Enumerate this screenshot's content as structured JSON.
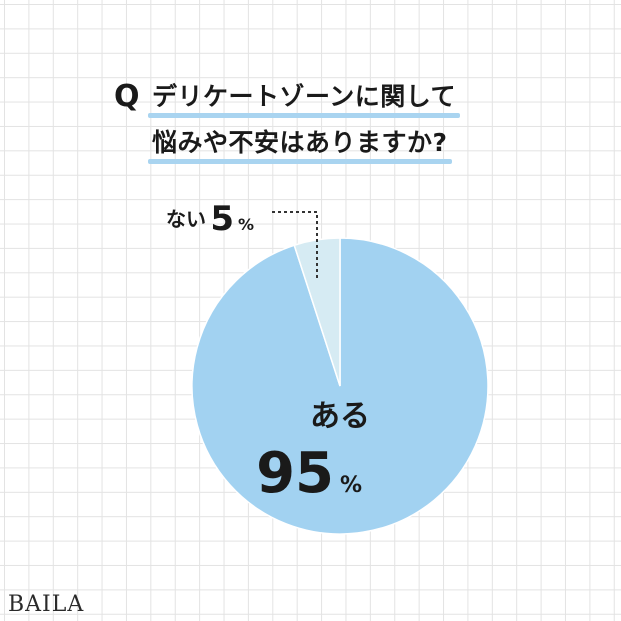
{
  "question": {
    "marker": "Q",
    "line1": "デリケートゾーンに関して",
    "line2": "悩みや不安はありますか?"
  },
  "chart_data": {
    "type": "pie",
    "slices": [
      {
        "label": "ある",
        "value": 95,
        "unit": "%",
        "color": "#a2d2f1"
      },
      {
        "label": "ない",
        "value": 5,
        "unit": "%",
        "color": "#d6ebf3"
      }
    ]
  },
  "brand": "BAILA"
}
